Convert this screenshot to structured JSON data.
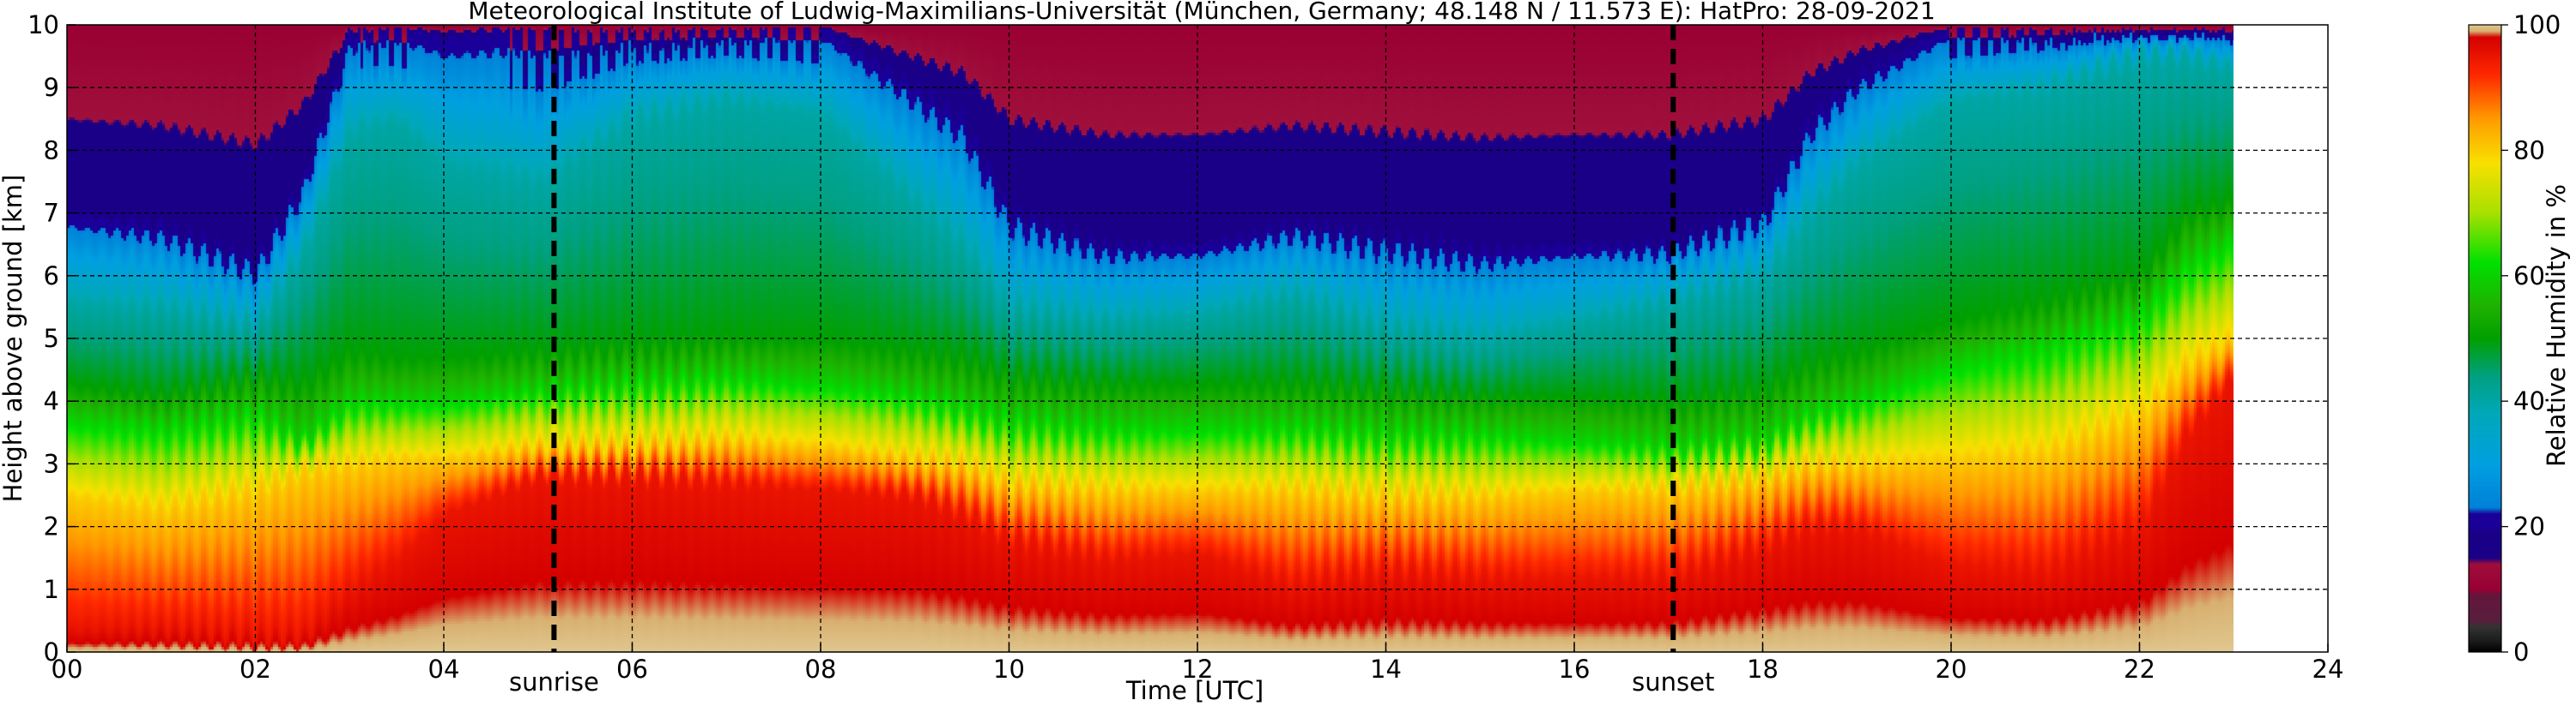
{
  "chart_data": {
    "type": "heatmap",
    "title": "Meteorological Institute of Ludwig-Maximilians-Universität (München, Germany; 48.148 N / 11.573 E):    HatPro: 28-09-2021",
    "xlabel": "Time [UTC]",
    "ylabel": "Height above ground [km]",
    "xlim": [
      0,
      24
    ],
    "ylim": [
      0,
      10
    ],
    "x_ticks": [
      "00",
      "02",
      "04",
      "06",
      "08",
      "10",
      "12",
      "14",
      "16",
      "18",
      "20",
      "22",
      "24"
    ],
    "y_ticks": [
      "0",
      "1",
      "2",
      "3",
      "4",
      "5",
      "6",
      "7",
      "8",
      "9",
      "10"
    ],
    "grid": true,
    "data_end_hour": 23.0,
    "colorbar": {
      "label": "Relative Humidity in %",
      "ticks": [
        "0",
        "20",
        "40",
        "60",
        "80",
        "100"
      ],
      "range": [
        0,
        100
      ]
    },
    "events": [
      {
        "name": "sunrise",
        "time": 5.17
      },
      {
        "name": "sunset",
        "time": 17.05
      }
    ],
    "rh_profiles_columns": [
      "time_utc",
      "h20_km",
      "h40_km",
      "h50_km",
      "h60_km",
      "h80_km",
      "h95_km"
    ],
    "rh_profiles": [
      [
        0.0,
        7.0,
        5.6,
        4.3,
        3.7,
        2.5,
        0.4
      ],
      [
        1.0,
        6.8,
        5.5,
        4.1,
        3.6,
        2.3,
        0.4
      ],
      [
        2.0,
        6.2,
        5.2,
        4.4,
        3.8,
        2.6,
        0.3
      ],
      [
        2.5,
        7.5,
        6.4,
        4.3,
        3.4,
        2.9,
        0.3
      ],
      [
        3.0,
        9.9,
        8.3,
        4.8,
        4.0,
        3.0,
        1.0
      ],
      [
        3.5,
        10.0,
        8.5,
        4.7,
        4.0,
        3.1,
        1.5
      ],
      [
        4.0,
        9.8,
        7.8,
        4.7,
        4.0,
        3.1,
        2.2
      ],
      [
        5.0,
        10.0,
        7.5,
        4.8,
        4.2,
        3.3,
        2.8
      ],
      [
        6.0,
        10.0,
        8.5,
        4.9,
        4.3,
        3.3,
        2.8
      ],
      [
        7.0,
        10.0,
        8.8,
        5.0,
        4.4,
        3.4,
        2.7
      ],
      [
        8.0,
        10.0,
        8.6,
        5.0,
        4.3,
        3.3,
        2.6
      ],
      [
        9.0,
        9.0,
        7.2,
        4.8,
        4.1,
        3.1,
        2.5
      ],
      [
        9.5,
        8.5,
        6.5,
        4.7,
        3.9,
        3.0,
        2.2
      ],
      [
        10.0,
        7.0,
        5.5,
        4.4,
        3.7,
        2.7,
        1.8
      ],
      [
        11.0,
        6.5,
        5.3,
        4.3,
        3.6,
        2.6,
        1.5
      ],
      [
        12.0,
        6.5,
        5.4,
        4.3,
        3.6,
        2.6,
        1.6
      ],
      [
        13.0,
        6.8,
        5.7,
        4.3,
        3.6,
        2.6,
        1.1
      ],
      [
        14.0,
        6.6,
        5.2,
        4.2,
        3.5,
        2.5,
        1.3
      ],
      [
        15.0,
        6.4,
        5.0,
        4.1,
        3.5,
        2.5,
        1.2
      ],
      [
        16.0,
        6.5,
        5.3,
        4.1,
        3.4,
        2.6,
        1.2
      ],
      [
        17.0,
        6.5,
        5.6,
        4.0,
        3.3,
        2.6,
        1.2
      ],
      [
        18.0,
        7.0,
        6.0,
        4.2,
        3.4,
        2.8,
        1.7
      ],
      [
        18.5,
        8.5,
        7.0,
        4.6,
        3.8,
        3.0,
        2.0
      ],
      [
        19.0,
        9.2,
        7.8,
        4.8,
        4.0,
        3.0,
        2.0
      ],
      [
        20.0,
        10.0,
        8.8,
        5.3,
        4.6,
        3.1,
        1.4
      ],
      [
        21.0,
        10.0,
        9.0,
        5.6,
        4.9,
        3.2,
        1.3
      ],
      [
        22.0,
        10.0,
        9.5,
        6.0,
        5.4,
        3.8,
        2.0
      ],
      [
        22.5,
        10.0,
        9.5,
        7.0,
        6.2,
        4.6,
        3.5
      ],
      [
        23.0,
        10.0,
        9.3,
        7.2,
        6.6,
        5.0,
        4.4
      ]
    ]
  }
}
